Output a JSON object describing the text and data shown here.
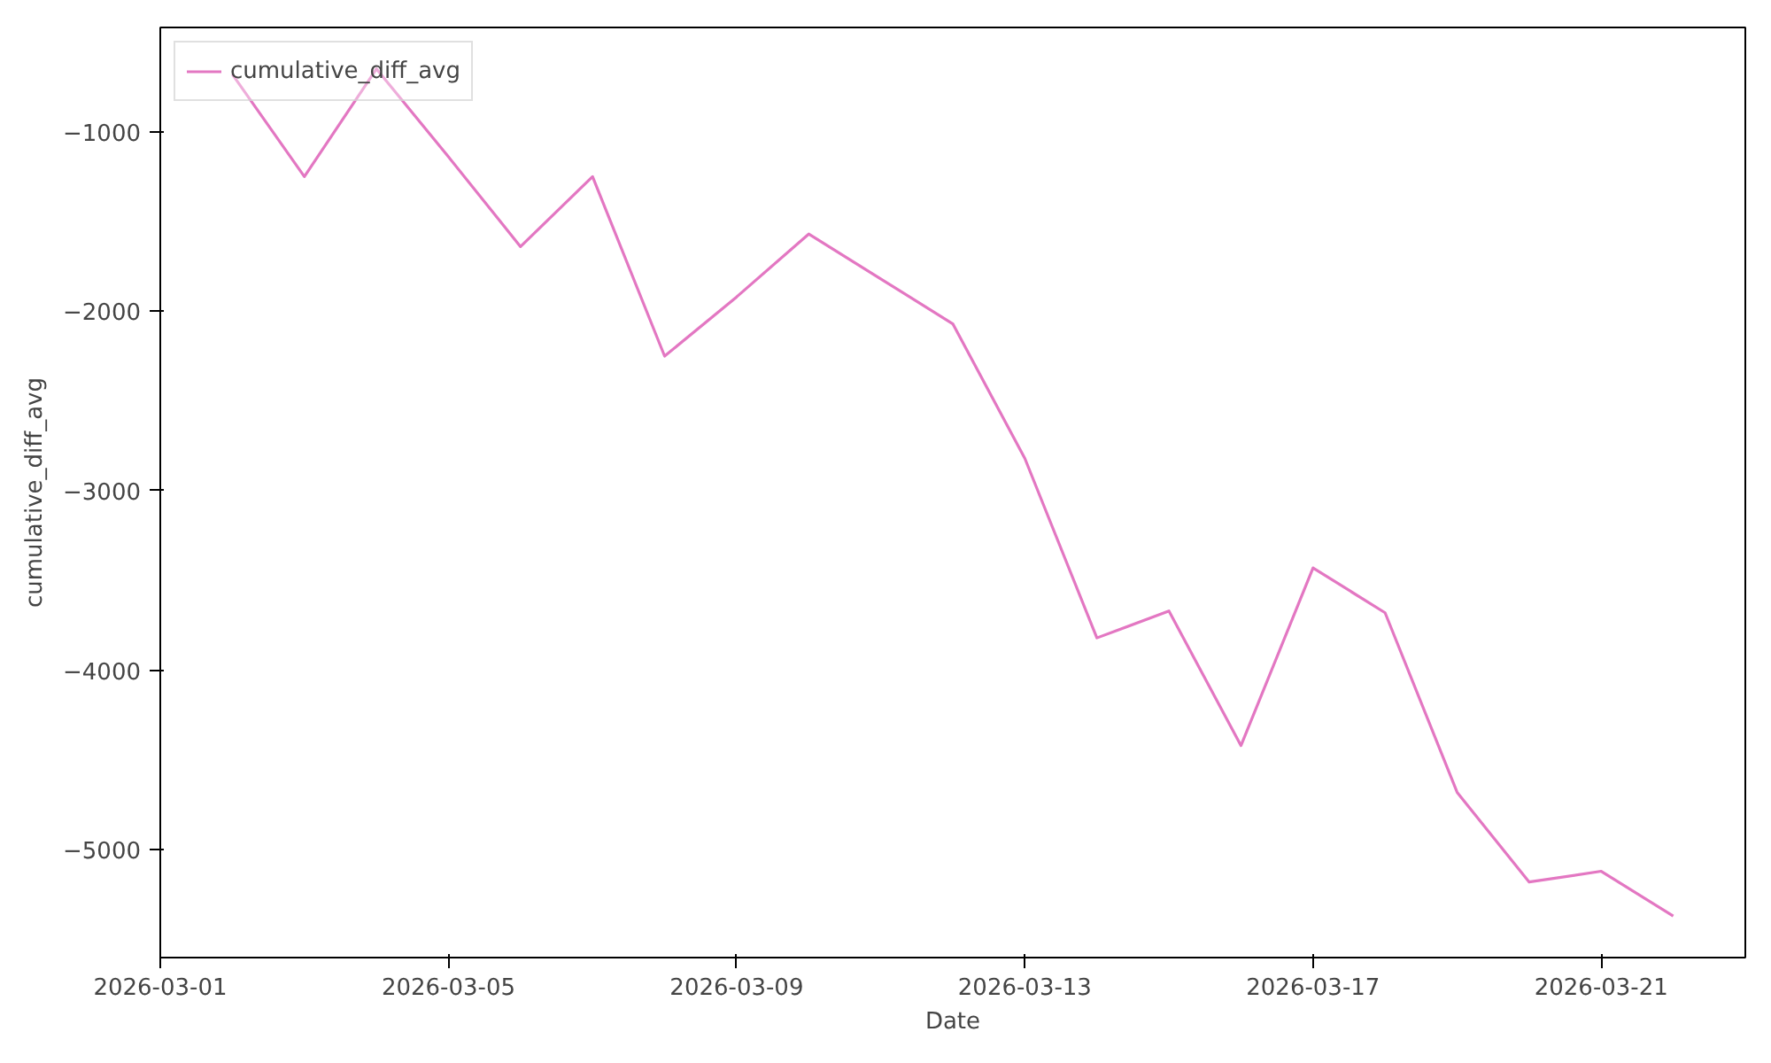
{
  "chart_data": {
    "type": "line",
    "xlabel": "Date",
    "ylabel": "cumulative_diff_avg",
    "x": [
      "2026-03-02",
      "2026-03-03",
      "2026-03-04",
      "2026-03-05",
      "2026-03-06",
      "2026-03-07",
      "2026-03-08",
      "2026-03-09",
      "2026-03-10",
      "2026-03-11",
      "2026-03-12",
      "2026-03-13",
      "2026-03-14",
      "2026-03-15",
      "2026-03-16",
      "2026-03-17",
      "2026-03-18",
      "2026-03-19",
      "2026-03-20",
      "2026-03-21",
      "2026-03-22"
    ],
    "series": [
      {
        "name": "cumulative_diff_avg",
        "color": "#e377c2",
        "values": [
          -680,
          -1250,
          -650,
          -1140,
          -1640,
          -1250,
          -2250,
          -1920,
          -1570,
          -1820,
          -2070,
          -2820,
          -3820,
          -3670,
          -4420,
          -3430,
          -3680,
          -4680,
          -5180,
          -5120,
          -5370
        ]
      }
    ],
    "xlim": [
      "2026-03-01",
      "2026-03-23"
    ],
    "xticks": [
      "2026-03-01",
      "2026-03-05",
      "2026-03-09",
      "2026-03-13",
      "2026-03-17",
      "2026-03-21"
    ],
    "ylim": [
      -5601,
      -419
    ],
    "yticks": [
      {
        "value": -5000,
        "label": "−5000"
      },
      {
        "value": -4000,
        "label": "−4000"
      },
      {
        "value": -3000,
        "label": "−3000"
      },
      {
        "value": -2000,
        "label": "−2000"
      },
      {
        "value": -1000,
        "label": "−1000"
      }
    ],
    "grid": false,
    "legend": "top left",
    "marker": "none",
    "line_style": "solid"
  }
}
